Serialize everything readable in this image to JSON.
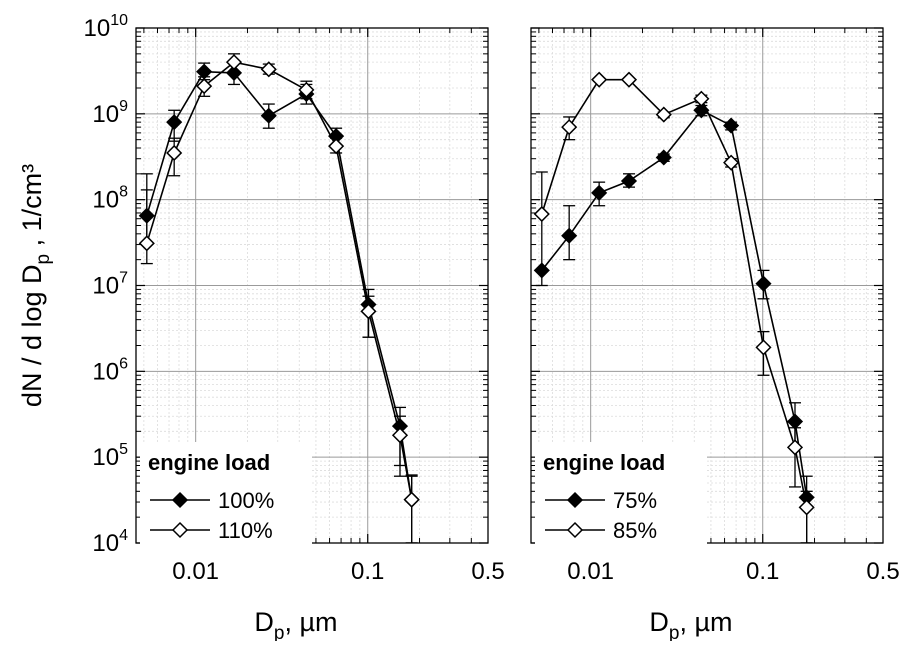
{
  "chart_data": [
    {
      "type": "line",
      "panel": "left",
      "xscale": "log",
      "yscale": "log",
      "xlim": [
        0.0045,
        0.5
      ],
      "ylim": [
        10000,
        10000000000
      ],
      "xticks": [
        0.01,
        0.1,
        0.5
      ],
      "xtick_labels": [
        "0.01",
        "0.1",
        "0.5"
      ],
      "yticks": [
        10000,
        100000,
        1000000,
        10000000,
        100000000,
        1000000000,
        10000000000
      ],
      "ytick_labels": [
        {
          "base": "10",
          "exp": "4"
        },
        {
          "base": "10",
          "exp": "5"
        },
        {
          "base": "10",
          "exp": "6"
        },
        {
          "base": "10",
          "exp": "7"
        },
        {
          "base": "10",
          "exp": "8"
        },
        {
          "base": "10",
          "exp": "9"
        },
        {
          "base": "10",
          "exp": "10"
        }
      ],
      "xlabel": {
        "main": "D",
        "sub": "p",
        "rest": ",  µm"
      },
      "ylabel": {
        "main": "dN / d log D",
        "sub": "p",
        "rest": " ,  1/cm³"
      },
      "grid": true,
      "legend": {
        "title": "engine load",
        "placement": "bottom-left"
      },
      "series": [
        {
          "name": "100%",
          "marker": "filled-diamond",
          "x": [
            0.0052,
            0.0075,
            0.0112,
            0.0167,
            0.0266,
            0.044,
            0.0655,
            0.101,
            0.154,
            0.18
          ],
          "y": [
            65000000,
            800000000,
            3100000000,
            3000000000,
            950000000,
            1700000000,
            550000000,
            6000000,
            230000,
            32000
          ],
          "err_low": [
            18000000,
            480000000,
            2500000000,
            2200000000,
            680000000,
            1300000000,
            420000000,
            2500000,
            80000,
            10000
          ],
          "err_high": [
            200000000,
            1100000000,
            3900000000,
            4100000000,
            1300000000,
            2200000000,
            680000000,
            9000000,
            380000,
            62000
          ]
        },
        {
          "name": "110%",
          "marker": "open-diamond",
          "x": [
            0.0052,
            0.0075,
            0.0112,
            0.0167,
            0.0266,
            0.044,
            0.0655,
            0.101,
            0.154,
            0.18
          ],
          "y": [
            31000000,
            350000000,
            2100000000,
            4000000000,
            3300000000,
            1900000000,
            420000000,
            5000000,
            180000,
            32000
          ],
          "err_low": [
            31000000,
            190000000,
            1600000000,
            3000000000,
            2900000000,
            1500000000,
            350000000,
            2500000,
            60000,
            10000
          ],
          "err_high": [
            130000000,
            520000000,
            2700000000,
            5000000000,
            3800000000,
            2400000000,
            520000000,
            7500000,
            300000,
            60000
          ]
        }
      ]
    },
    {
      "type": "line",
      "panel": "right",
      "xscale": "log",
      "yscale": "log",
      "xlim": [
        0.0045,
        0.5
      ],
      "ylim": [
        10000,
        10000000000
      ],
      "xticks": [
        0.01,
        0.1,
        0.5
      ],
      "xtick_labels": [
        "0.01",
        "0.1",
        "0.5"
      ],
      "xlabel": {
        "main": "D",
        "sub": "p",
        "rest": ",  µm"
      },
      "grid": true,
      "legend": {
        "title": "engine load",
        "placement": "bottom-left"
      },
      "series": [
        {
          "name": "75%",
          "marker": "filled-diamond",
          "x": [
            0.0052,
            0.0075,
            0.0112,
            0.0167,
            0.0266,
            0.044,
            0.0655,
            0.101,
            0.154,
            0.18
          ],
          "y": [
            15000000,
            38000000,
            120000000,
            165000000,
            310000000,
            1100000000,
            730000000,
            10500000,
            260000,
            34000
          ],
          "err_low": [
            15000000,
            20000000,
            85000000,
            140000000,
            280000000,
            950000000,
            650000000,
            7000000,
            130000,
            10000
          ],
          "err_high": [
            15000000,
            85000000,
            160000000,
            200000000,
            340000000,
            1250000000,
            800000000,
            15000000,
            430000,
            60000
          ]
        },
        {
          "name": "85%",
          "marker": "open-diamond",
          "x": [
            0.0052,
            0.0075,
            0.0112,
            0.0167,
            0.0266,
            0.044,
            0.0655,
            0.101,
            0.154,
            0.18
          ],
          "y": [
            68000000,
            700000000,
            2500000000,
            2500000000,
            980000000,
            1500000000,
            270000000,
            1900000,
            130000,
            26000
          ],
          "err_low": [
            10000000,
            500000000,
            2400000000,
            2400000000,
            900000000,
            1350000000,
            240000000,
            900000,
            45000,
            10000
          ],
          "err_high": [
            210000000,
            920000000,
            2600000000,
            2600000000,
            1050000000,
            1650000000,
            300000000,
            2900000,
            220000,
            40000
          ]
        }
      ]
    }
  ]
}
